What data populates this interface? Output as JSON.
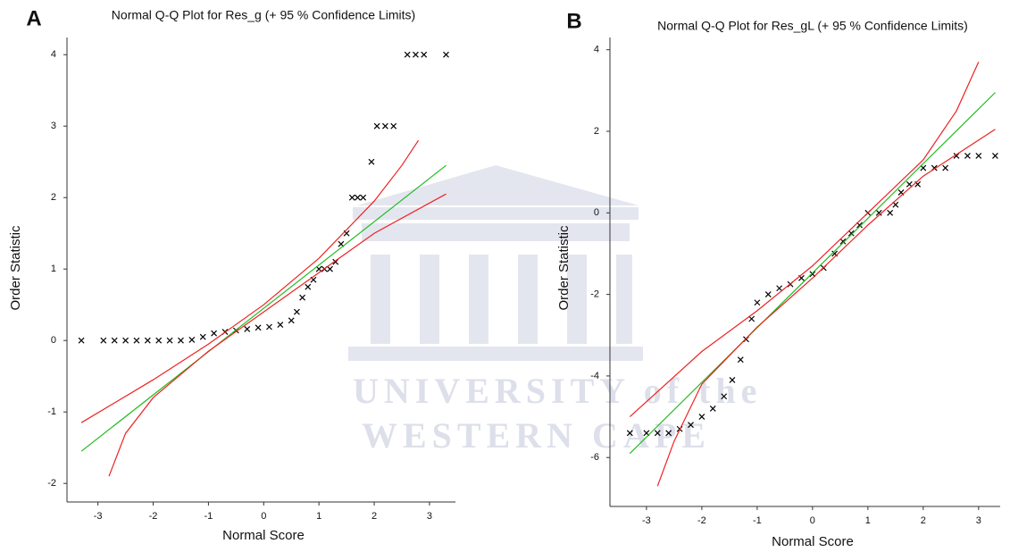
{
  "watermark": [
    "UNIVERSITY of the",
    "WESTERN CAPE"
  ],
  "chart_data": [
    {
      "type": "scatter",
      "panel_label": "A",
      "title": "Normal Q-Q Plot for Res_g (+ 95 % Confidence Limits)",
      "x_label": "Normal Score",
      "y_label": "Order Statistic",
      "xlim": [
        -3.56,
        3.47
      ],
      "ylim": [
        -2.26,
        4.24
      ],
      "xticks": [
        -3,
        -2,
        -1,
        0,
        1,
        2,
        3
      ],
      "yticks": [
        -2,
        -1,
        0,
        1,
        2,
        3,
        4
      ],
      "series": [
        {
          "type": "scatter",
          "color": "#000000",
          "x": [
            -3.3,
            -2.9,
            -2.7,
            -2.5,
            -2.3,
            -2.1,
            -1.9,
            -1.7,
            -1.5,
            -1.3,
            -1.1,
            -0.9,
            -0.7,
            -0.5,
            -0.3,
            -0.1,
            0.1,
            0.3,
            0.5,
            0.6,
            0.7,
            0.8,
            0.9,
            1.0,
            1.1,
            1.2,
            1.3,
            1.4,
            1.5,
            1.6,
            1.7,
            1.8,
            1.95,
            2.05,
            2.2,
            2.35,
            2.6,
            2.75,
            2.9,
            3.3
          ],
          "values": [
            0,
            0,
            0,
            0,
            0,
            0,
            0,
            0,
            0,
            0.01,
            0.05,
            0.1,
            0.12,
            0.14,
            0.16,
            0.18,
            0.19,
            0.22,
            0.28,
            0.4,
            0.6,
            0.75,
            0.85,
            1.0,
            1.0,
            1.0,
            1.1,
            1.35,
            1.5,
            2.0,
            2.0,
            2.0,
            2.5,
            3.0,
            3.0,
            3.0,
            4.0,
            4.0,
            4.0,
            4.0
          ]
        },
        {
          "type": "line",
          "color": "#22bb22",
          "x": [
            -3.3,
            3.3
          ],
          "values": [
            -1.55,
            2.45
          ]
        },
        {
          "type": "line",
          "color": "#ee2222",
          "x": [
            -3.3,
            -2,
            -1,
            0,
            1,
            2,
            2.5,
            2.8
          ],
          "values": [
            -1.15,
            -0.55,
            -0.05,
            0.5,
            1.15,
            1.95,
            2.45,
            2.8
          ]
        },
        {
          "type": "line",
          "color": "#ee2222",
          "x": [
            -2.8,
            -2.5,
            -2,
            -1,
            0,
            1,
            2,
            3.3
          ],
          "values": [
            -1.9,
            -1.3,
            -0.8,
            -0.15,
            0.4,
            0.95,
            1.5,
            2.05
          ]
        }
      ]
    },
    {
      "type": "scatter",
      "panel_label": "B",
      "title": "Normal Q-Q Plot for Res_gL (+ 95 % Confidence Limits)",
      "x_label": "Normal Score",
      "y_label": "Order Statistic",
      "xlim": [
        -3.66,
        3.39
      ],
      "ylim": [
        -7.2,
        4.3
      ],
      "xticks": [
        -3,
        -2,
        -1,
        0,
        1,
        2,
        3
      ],
      "yticks": [
        -6,
        -4,
        -2,
        0,
        2,
        4
      ],
      "series": [
        {
          "type": "scatter",
          "color": "#000000",
          "x": [
            -3.3,
            -3,
            -2.8,
            -2.6,
            -2.4,
            -2.2,
            -2,
            -1.8,
            -1.6,
            -1.45,
            -1.3,
            -1.2,
            -1.1,
            -1.0,
            -0.8,
            -0.6,
            -0.4,
            -0.2,
            0,
            0.2,
            0.4,
            0.55,
            0.7,
            0.85,
            1.0,
            1.2,
            1.4,
            1.5,
            1.6,
            1.75,
            1.9,
            2.0,
            2.2,
            2.4,
            2.6,
            2.8,
            3.0,
            3.3
          ],
          "values": [
            -5.4,
            -5.4,
            -5.4,
            -5.4,
            -5.3,
            -5.2,
            -5.0,
            -4.8,
            -4.5,
            -4.1,
            -3.6,
            -3.1,
            -2.6,
            -2.2,
            -2.0,
            -1.85,
            -1.75,
            -1.6,
            -1.5,
            -1.35,
            -1.0,
            -0.7,
            -0.5,
            -0.3,
            0,
            0,
            0,
            0.2,
            0.5,
            0.7,
            0.7,
            1.1,
            1.1,
            1.1,
            1.4,
            1.4,
            1.4,
            1.4
          ]
        },
        {
          "type": "line",
          "color": "#22bb22",
          "x": [
            -3.3,
            3.3
          ],
          "values": [
            -5.9,
            2.95
          ]
        },
        {
          "type": "line",
          "color": "#ee2222",
          "x": [
            -3.3,
            -2,
            -1,
            0,
            1,
            2,
            2.6,
            3
          ],
          "values": [
            -5.0,
            -3.4,
            -2.4,
            -1.3,
            0.0,
            1.3,
            2.5,
            3.7
          ]
        },
        {
          "type": "line",
          "color": "#ee2222",
          "x": [
            -2.8,
            -2.5,
            -2,
            -1,
            0,
            1,
            2,
            3.3
          ],
          "values": [
            -6.7,
            -5.6,
            -4.2,
            -2.8,
            -1.6,
            -0.3,
            0.9,
            2.05
          ]
        }
      ]
    }
  ]
}
